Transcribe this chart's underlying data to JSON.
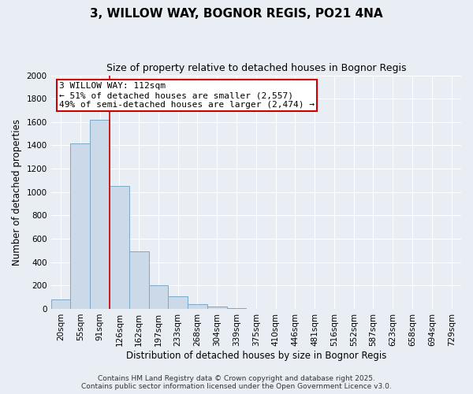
{
  "title1": "3, WILLOW WAY, BOGNOR REGIS, PO21 4NA",
  "title2": "Size of property relative to detached houses in Bognor Regis",
  "xlabel": "Distribution of detached houses by size in Bognor Regis",
  "ylabel": "Number of detached properties",
  "bar_color": "#ccd9e8",
  "bar_edge_color": "#7aaac8",
  "categories": [
    "20sqm",
    "55sqm",
    "91sqm",
    "126sqm",
    "162sqm",
    "197sqm",
    "233sqm",
    "268sqm",
    "304sqm",
    "339sqm",
    "375sqm",
    "410sqm",
    "446sqm",
    "481sqm",
    "516sqm",
    "552sqm",
    "587sqm",
    "623sqm",
    "658sqm",
    "694sqm",
    "729sqm"
  ],
  "values": [
    80,
    1420,
    1620,
    1050,
    490,
    205,
    105,
    40,
    20,
    5,
    2,
    1,
    0,
    0,
    0,
    0,
    0,
    0,
    0,
    0,
    0
  ],
  "ylim": [
    0,
    2000
  ],
  "yticks": [
    0,
    200,
    400,
    600,
    800,
    1000,
    1200,
    1400,
    1600,
    1800,
    2000
  ],
  "vline_x": 2.5,
  "vline_color": "#cc0000",
  "annotation_line1": "3 WILLOW WAY: 112sqm",
  "annotation_line2": "← 51% of detached houses are smaller (2,557)",
  "annotation_line3": "49% of semi-detached houses are larger (2,474) →",
  "annotation_box_color": "#cc0000",
  "footer1": "Contains HM Land Registry data © Crown copyright and database right 2025.",
  "footer2": "Contains public sector information licensed under the Open Government Licence v3.0.",
  "background_color": "#e8eef4",
  "grid_color": "#ffffff",
  "title_fontsize": 11,
  "subtitle_fontsize": 9,
  "axis_label_fontsize": 8.5,
  "tick_fontsize": 7.5,
  "annotation_fontsize": 8,
  "footer_fontsize": 6.5
}
